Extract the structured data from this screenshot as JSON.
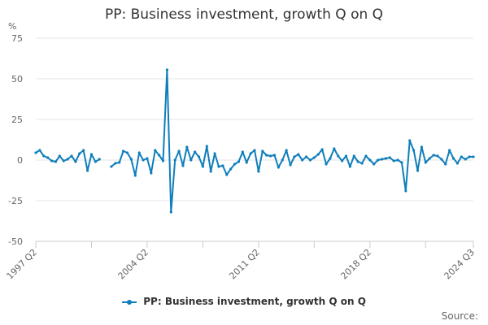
{
  "chart_data": {
    "type": "line",
    "title": "PP: Business investment, growth Q on Q",
    "ylabel": "%",
    "ylim": [
      -50,
      75
    ],
    "yticks": [
      75,
      50,
      25,
      0,
      -25,
      -50
    ],
    "xtick_labels": [
      "1997 Q2",
      "2004 Q2",
      "2011 Q2",
      "2018 Q2",
      "2024 Q3"
    ],
    "x_start": "1997 Q2",
    "x_end": "2024 Q3",
    "grid": true,
    "legend_position": "bottom",
    "series": [
      {
        "name": "PP: Business investment, growth Q on Q",
        "color": "#0f7ebb",
        "values": [
          4.5,
          6.0,
          2.5,
          1.5,
          -0.5,
          -1.0,
          2.5,
          -0.5,
          0.5,
          2.5,
          -1.0,
          4.0,
          6.0,
          -6.5,
          3.5,
          -1.0,
          0.5,
          null,
          null,
          -4.0,
          -2.0,
          -1.5,
          5.5,
          4.5,
          0.5,
          -9.5,
          4.5,
          0.0,
          1.0,
          -8.0,
          6.0,
          3.0,
          -0.5,
          55.5,
          -32.0,
          0.0,
          5.5,
          -3.5,
          8.0,
          0.0,
          5.0,
          2.0,
          -4.0,
          8.5,
          -7.0,
          4.0,
          -4.0,
          -3.5,
          -9.0,
          -5.5,
          -2.5,
          -1.0,
          5.0,
          -1.5,
          4.0,
          6.0,
          -7.0,
          5.5,
          3.0,
          2.5,
          3.0,
          -4.5,
          0.0,
          6.0,
          -3.0,
          2.0,
          3.5,
          0.0,
          2.0,
          0.0,
          1.5,
          3.5,
          6.5,
          -2.5,
          1.0,
          7.0,
          2.5,
          -0.5,
          2.5,
          -4.0,
          2.5,
          -1.0,
          -2.0,
          2.5,
          0.0,
          -2.5,
          0.0,
          0.5,
          1.0,
          1.5,
          -0.5,
          0.0,
          -1.5,
          -19.0,
          12.0,
          6.0,
          -6.5,
          8.0,
          -1.5,
          1.0,
          3.0,
          2.5,
          0.5,
          -2.5,
          6.0,
          1.0,
          -2.0,
          2.0,
          0.5,
          2.0,
          2.0
        ]
      }
    ]
  },
  "source_label": "Source:"
}
